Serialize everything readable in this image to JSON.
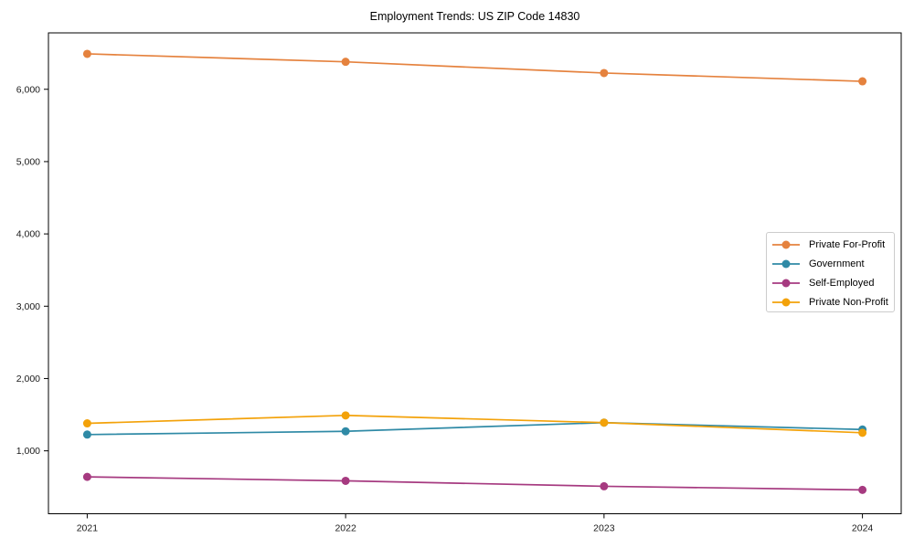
{
  "chart_data": {
    "type": "line",
    "title": "Employment Trends: US ZIP Code 14830",
    "xlabel": "",
    "ylabel": "",
    "x": [
      2021,
      2022,
      2023,
      2024
    ],
    "x_tick_labels": [
      "2021",
      "2022",
      "2023",
      "2024"
    ],
    "y_ticks": [
      1000,
      2000,
      3000,
      4000,
      5000,
      6000
    ],
    "y_tick_labels": [
      "1,000",
      "2,000",
      "3,000",
      "4,000",
      "5,000",
      "6,000"
    ],
    "xlim": [
      2020.85,
      2024.15
    ],
    "ylim": [
      130,
      6780
    ],
    "grid": false,
    "legend": {
      "position": "center-right"
    },
    "series": [
      {
        "name": "Private For-Profit",
        "color": "#e5823e",
        "values": [
          6490,
          6380,
          6225,
          6110
        ]
      },
      {
        "name": "Government",
        "color": "#2f8aa6",
        "values": [
          1225,
          1270,
          1390,
          1295
        ]
      },
      {
        "name": "Self-Employed",
        "color": "#a63a80",
        "values": [
          640,
          585,
          510,
          460
        ]
      },
      {
        "name": "Private Non-Profit",
        "color": "#f3a20a",
        "values": [
          1380,
          1490,
          1390,
          1250
        ]
      }
    ]
  }
}
